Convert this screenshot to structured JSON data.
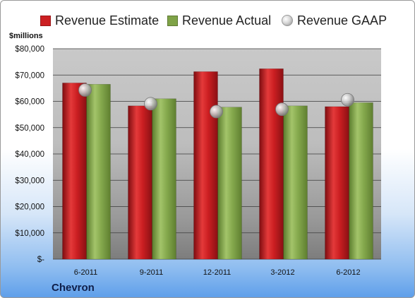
{
  "chart_data": {
    "type": "bar",
    "company": "Chevron",
    "ylabel": "$millions",
    "categories": [
      "6-2011",
      "9-2011",
      "12-2011",
      "3-2012",
      "6-2012"
    ],
    "ylim": [
      0,
      80000
    ],
    "yticks": [
      {
        "value": 0,
        "label": "$-"
      },
      {
        "value": 10000,
        "label": "$10,000"
      },
      {
        "value": 20000,
        "label": "$20,000"
      },
      {
        "value": 30000,
        "label": "$30,000"
      },
      {
        "value": 40000,
        "label": "$40,000"
      },
      {
        "value": 50000,
        "label": "$50,000"
      },
      {
        "value": 60000,
        "label": "$60,000"
      },
      {
        "value": 70000,
        "label": "$70,000"
      },
      {
        "value": 80000,
        "label": "$80,000"
      }
    ],
    "grid": true,
    "legend_position": "top",
    "series": [
      {
        "name": "Revenue Estimate",
        "kind": "bar",
        "color": "#cc1f22",
        "values": [
          67000,
          58300,
          71300,
          72400,
          58000
        ]
      },
      {
        "name": "Revenue Actual",
        "kind": "bar",
        "color": "#7fa347",
        "values": [
          66500,
          61000,
          57800,
          58300,
          59500
        ]
      },
      {
        "name": "Revenue GAAP",
        "kind": "marker",
        "color": "#c8c8c8",
        "values": [
          64300,
          59100,
          56100,
          57000,
          60600
        ]
      }
    ]
  }
}
